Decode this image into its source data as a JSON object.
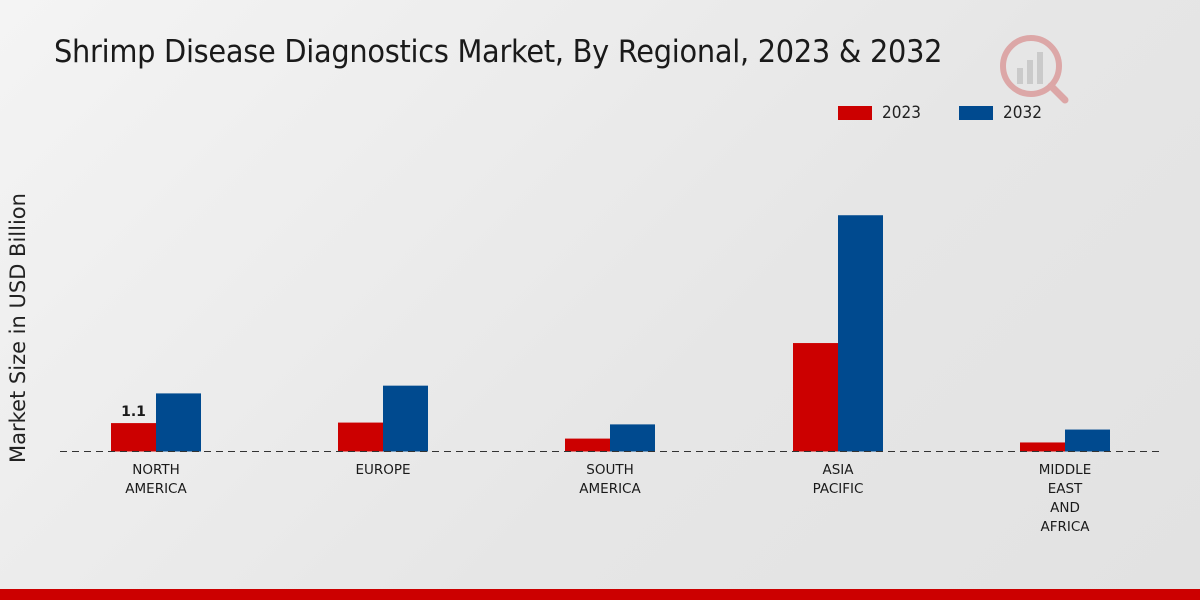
{
  "chart_data": {
    "type": "bar",
    "title": "Shrimp Disease Diagnostics Market, By Regional, 2023 & 2032",
    "xlabel": "",
    "ylabel": "Market Size in USD Billion",
    "categories": [
      "NORTH\nAMERICA",
      "EUROPE",
      "SOUTH\nAMERICA",
      "ASIA\nPACIFIC",
      "MIDDLE\nEAST\nAND\nAFRICA"
    ],
    "series": [
      {
        "name": "2023",
        "color": "#cc0000",
        "values": [
          1.1,
          1.12,
          0.5,
          4.2,
          0.35
        ]
      },
      {
        "name": "2032",
        "color": "#004a8f",
        "values": [
          2.25,
          2.55,
          1.05,
          9.15,
          0.85
        ]
      }
    ],
    "ylim": [
      0,
      14
    ],
    "grid": false,
    "legend": "top-right",
    "data_labels": [
      {
        "series": "2023",
        "category_index": 0,
        "text": "1.1"
      }
    ]
  }
}
